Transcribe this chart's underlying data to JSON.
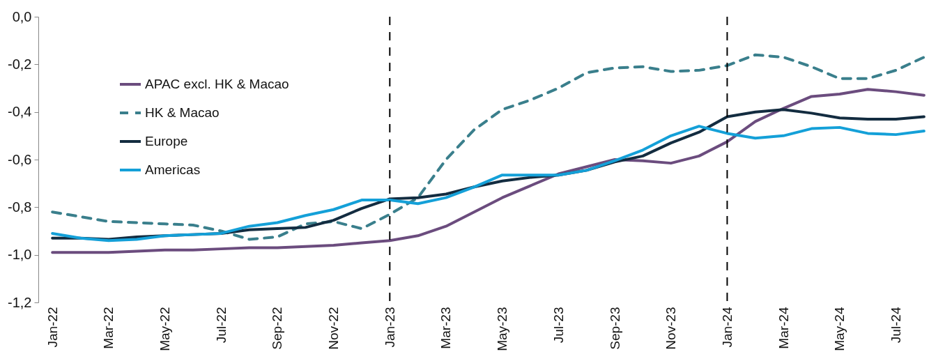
{
  "chart_data": {
    "type": "line",
    "categories": [
      "Jan-22",
      null,
      "Mar-22",
      null,
      "May-22",
      null,
      "Jul-22",
      null,
      "Sep-22",
      null,
      "Nov-22",
      null,
      "Jan-23",
      null,
      "Mar-23",
      null,
      "May-23",
      null,
      "Jul-23",
      null,
      "Sep-23",
      null,
      "Nov-23",
      null,
      "Jan-24",
      null,
      "Mar-24",
      null,
      "May-24",
      null,
      "Jul-24",
      null
    ],
    "series": [
      {
        "name": "APAC excl. HK & Macao",
        "color": "#6b4c7e",
        "line_style": "solid",
        "values": [
          -0.99,
          -0.99,
          -0.99,
          -0.985,
          -0.98,
          -0.98,
          -0.975,
          -0.97,
          -0.97,
          -0.965,
          -0.96,
          -0.95,
          -0.94,
          -0.92,
          -0.88,
          -0.82,
          -0.76,
          -0.71,
          -0.66,
          -0.63,
          -0.6,
          -0.605,
          -0.615,
          -0.585,
          -0.525,
          -0.44,
          -0.385,
          -0.335,
          -0.325,
          -0.305,
          -0.315,
          -0.33
        ]
      },
      {
        "name": "HK & Macao",
        "color": "#3a7f8c",
        "line_style": "dashed",
        "values": [
          -0.82,
          -0.84,
          -0.86,
          -0.865,
          -0.87,
          -0.875,
          -0.9,
          -0.935,
          -0.925,
          -0.87,
          -0.86,
          -0.89,
          -0.83,
          -0.76,
          -0.6,
          -0.475,
          -0.39,
          -0.35,
          -0.3,
          -0.235,
          -0.215,
          -0.21,
          -0.23,
          -0.225,
          -0.205,
          -0.16,
          -0.17,
          -0.21,
          -0.26,
          -0.26,
          -0.225,
          -0.17
        ]
      },
      {
        "name": "Europe",
        "color": "#132c40",
        "line_style": "solid",
        "values": [
          -0.93,
          -0.93,
          -0.935,
          -0.925,
          -0.92,
          -0.915,
          -0.91,
          -0.895,
          -0.89,
          -0.885,
          -0.855,
          -0.805,
          -0.765,
          -0.76,
          -0.745,
          -0.715,
          -0.69,
          -0.675,
          -0.665,
          -0.645,
          -0.61,
          -0.585,
          -0.53,
          -0.485,
          -0.42,
          -0.4,
          -0.39,
          -0.405,
          -0.425,
          -0.43,
          -0.43,
          -0.42
        ]
      },
      {
        "name": "Americas",
        "color": "#14a0d8",
        "line_style": "solid",
        "values": [
          -0.91,
          -0.93,
          -0.94,
          -0.935,
          -0.92,
          -0.915,
          -0.91,
          -0.88,
          -0.865,
          -0.835,
          -0.81,
          -0.77,
          -0.77,
          -0.785,
          -0.76,
          -0.715,
          -0.665,
          -0.665,
          -0.665,
          -0.645,
          -0.605,
          -0.56,
          -0.5,
          -0.46,
          -0.49,
          -0.51,
          -0.5,
          -0.47,
          -0.465,
          -0.49,
          -0.495,
          -0.48
        ]
      }
    ],
    "ylim": [
      -1.2,
      0
    ],
    "yticks": [
      {
        "value": -1.2,
        "label": "-1,2"
      },
      {
        "value": -1.0,
        "label": "-1,0"
      },
      {
        "value": -0.8,
        "label": "-0,8"
      },
      {
        "value": -0.6,
        "label": "-0,6"
      },
      {
        "value": -0.4,
        "label": "-0,4"
      },
      {
        "value": -0.2,
        "label": "-0,2"
      },
      {
        "value": 0,
        "label": "0,0"
      }
    ],
    "ref_lines": [
      {
        "axis": "x",
        "value": "Jan-23",
        "color": "#000000",
        "line_style": "dashed"
      },
      {
        "axis": "x",
        "value": "Jan-24",
        "color": "#000000",
        "line_style": "dashed"
      }
    ],
    "grid": false,
    "legend": "top left"
  }
}
